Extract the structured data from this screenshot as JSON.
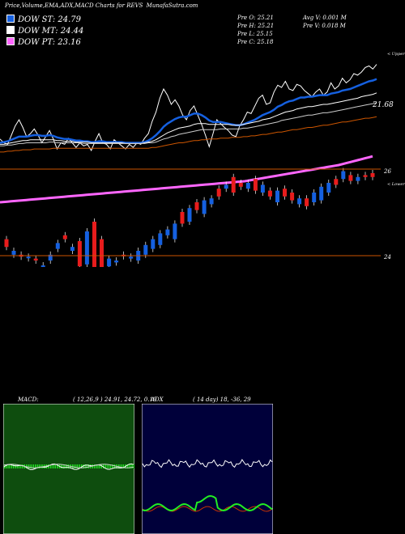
{
  "header": {
    "title": "Price,Volume,EMA,ADX,MACD Charts for REVS",
    "source": "MunafaSutra.com"
  },
  "legend": [
    {
      "label": "DOW ST: 24.79",
      "color": "#1560e0"
    },
    {
      "label": "DOW MT: 24.44",
      "color": "#ffffff"
    },
    {
      "label": "DOW PT: 23.16",
      "color": "#ff66ff"
    }
  ],
  "stats": {
    "prev_open": "Pre   O: 25.21",
    "prev_high": "Pre   H: 25.21",
    "prev_low": "Pre   L: 25.15",
    "prev_close": "Pre   C: 25.18",
    "avg_volume": "Avg V: 0.001 M",
    "prev_volume": "Pre   V: 0.018 M"
  },
  "upper": {
    "label_right": "< Upper",
    "level_label": "21.68",
    "bottom_label": "26"
  },
  "lower": {
    "label_right": "< Lower",
    "level_label": "24"
  },
  "chart_data": [
    {
      "type": "line",
      "name": "price-ema-upper",
      "x": [
        1,
        2,
        3,
        4,
        5,
        6,
        7,
        8,
        9,
        10,
        11,
        12,
        13,
        14,
        15,
        16,
        17,
        18,
        19,
        20,
        21,
        22,
        23,
        24,
        25,
        26,
        27,
        28,
        29,
        30,
        31,
        32,
        33,
        34,
        35,
        36,
        37,
        38,
        39,
        40,
        41,
        42,
        43,
        44,
        45,
        46,
        47,
        48,
        49,
        50,
        51,
        52,
        53,
        54,
        55,
        56,
        57,
        58,
        59,
        60,
        61,
        62,
        63,
        64,
        65,
        66,
        67,
        68,
        69,
        70,
        71,
        72,
        73,
        74,
        75,
        76,
        77,
        78,
        79,
        80,
        81,
        82,
        83,
        84,
        85,
        86,
        87,
        88,
        89,
        90,
        91,
        92,
        93,
        94,
        95,
        96,
        97,
        98,
        99,
        100
      ],
      "series": [
        {
          "color": "#ffffff",
          "values": [
            0.35,
            0.3,
            0.28,
            0.4,
            0.52,
            0.6,
            0.5,
            0.38,
            0.42,
            0.48,
            0.4,
            0.3,
            0.38,
            0.46,
            0.35,
            0.22,
            0.3,
            0.28,
            0.36,
            0.3,
            0.24,
            0.3,
            0.26,
            0.28,
            0.2,
            0.32,
            0.42,
            0.3,
            0.28,
            0.22,
            0.34,
            0.3,
            0.26,
            0.22,
            0.28,
            0.24,
            0.3,
            0.28,
            0.36,
            0.42,
            0.58,
            0.7,
            0.88,
            1.0,
            0.92,
            0.8,
            0.86,
            0.78,
            0.66,
            0.6,
            0.72,
            0.78,
            0.66,
            0.54,
            0.4,
            0.25,
            0.42,
            0.6,
            0.55,
            0.5,
            0.46,
            0.4,
            0.38,
            0.52,
            0.6,
            0.7,
            0.68,
            0.78,
            0.88,
            0.92,
            0.8,
            0.82,
            0.96,
            1.05,
            1.02,
            1.1,
            1.0,
            0.98,
            1.06,
            1.04,
            0.98,
            0.94,
            0.9,
            0.96,
            1.0,
            0.92,
            0.96,
            1.08,
            1.0,
            1.04,
            1.14,
            1.08,
            1.12,
            1.2,
            1.18,
            1.22,
            1.28,
            1.3,
            1.26,
            1.32
          ]
        },
        {
          "color": "#1560e0",
          "values": [
            0.3,
            0.31,
            0.32,
            0.34,
            0.36,
            0.38,
            0.38,
            0.38,
            0.39,
            0.4,
            0.4,
            0.39,
            0.39,
            0.4,
            0.39,
            0.37,
            0.36,
            0.35,
            0.35,
            0.34,
            0.33,
            0.33,
            0.32,
            0.32,
            0.31,
            0.31,
            0.32,
            0.32,
            0.31,
            0.31,
            0.31,
            0.31,
            0.31,
            0.3,
            0.3,
            0.3,
            0.3,
            0.3,
            0.31,
            0.33,
            0.36,
            0.4,
            0.45,
            0.51,
            0.55,
            0.58,
            0.61,
            0.63,
            0.64,
            0.64,
            0.66,
            0.68,
            0.68,
            0.66,
            0.63,
            0.59,
            0.57,
            0.57,
            0.57,
            0.56,
            0.55,
            0.54,
            0.53,
            0.53,
            0.54,
            0.56,
            0.58,
            0.6,
            0.63,
            0.66,
            0.68,
            0.7,
            0.73,
            0.77,
            0.79,
            0.82,
            0.84,
            0.85,
            0.87,
            0.89,
            0.89,
            0.9,
            0.9,
            0.91,
            0.92,
            0.92,
            0.92,
            0.94,
            0.95,
            0.96,
            0.98,
            0.99,
            1.0,
            1.02,
            1.04,
            1.06,
            1.08,
            1.1,
            1.11,
            1.13
          ]
        },
        {
          "color": "#ffffff",
          "values": [
            0.28,
            0.28,
            0.29,
            0.3,
            0.31,
            0.32,
            0.33,
            0.33,
            0.34,
            0.34,
            0.34,
            0.34,
            0.34,
            0.34,
            0.34,
            0.33,
            0.33,
            0.32,
            0.32,
            0.32,
            0.31,
            0.31,
            0.31,
            0.31,
            0.3,
            0.3,
            0.3,
            0.3,
            0.3,
            0.3,
            0.3,
            0.3,
            0.3,
            0.29,
            0.29,
            0.29,
            0.29,
            0.29,
            0.3,
            0.31,
            0.32,
            0.34,
            0.37,
            0.4,
            0.43,
            0.45,
            0.47,
            0.49,
            0.5,
            0.51,
            0.52,
            0.54,
            0.55,
            0.55,
            0.55,
            0.54,
            0.54,
            0.54,
            0.54,
            0.54,
            0.54,
            0.53,
            0.53,
            0.53,
            0.54,
            0.55,
            0.56,
            0.57,
            0.58,
            0.6,
            0.61,
            0.62,
            0.64,
            0.66,
            0.68,
            0.7,
            0.71,
            0.72,
            0.74,
            0.75,
            0.76,
            0.77,
            0.77,
            0.78,
            0.79,
            0.8,
            0.8,
            0.81,
            0.82,
            0.83,
            0.84,
            0.85,
            0.86,
            0.87,
            0.88,
            0.9,
            0.91,
            0.92,
            0.93,
            0.95
          ]
        },
        {
          "color": "#cccccc",
          "values": [
            0.26,
            0.26,
            0.27,
            0.27,
            0.28,
            0.29,
            0.29,
            0.3,
            0.3,
            0.3,
            0.3,
            0.3,
            0.3,
            0.31,
            0.31,
            0.3,
            0.3,
            0.3,
            0.3,
            0.3,
            0.3,
            0.3,
            0.29,
            0.29,
            0.29,
            0.29,
            0.29,
            0.29,
            0.29,
            0.29,
            0.29,
            0.29,
            0.29,
            0.29,
            0.29,
            0.29,
            0.29,
            0.29,
            0.29,
            0.3,
            0.3,
            0.31,
            0.33,
            0.35,
            0.36,
            0.38,
            0.39,
            0.41,
            0.42,
            0.43,
            0.44,
            0.45,
            0.46,
            0.47,
            0.47,
            0.47,
            0.47,
            0.47,
            0.48,
            0.48,
            0.48,
            0.48,
            0.48,
            0.48,
            0.49,
            0.49,
            0.5,
            0.51,
            0.52,
            0.53,
            0.54,
            0.55,
            0.56,
            0.57,
            0.59,
            0.6,
            0.61,
            0.62,
            0.63,
            0.64,
            0.65,
            0.66,
            0.66,
            0.67,
            0.68,
            0.69,
            0.69,
            0.7,
            0.71,
            0.72,
            0.73,
            0.74,
            0.75,
            0.76,
            0.77,
            0.78,
            0.79,
            0.8,
            0.81,
            0.82
          ]
        },
        {
          "color": "#cc5500",
          "values": [
            0.18,
            0.18,
            0.19,
            0.19,
            0.2,
            0.2,
            0.21,
            0.21,
            0.21,
            0.22,
            0.22,
            0.22,
            0.22,
            0.22,
            0.23,
            0.23,
            0.23,
            0.23,
            0.23,
            0.23,
            0.23,
            0.23,
            0.23,
            0.23,
            0.23,
            0.23,
            0.23,
            0.23,
            0.23,
            0.23,
            0.23,
            0.23,
            0.23,
            0.23,
            0.23,
            0.23,
            0.23,
            0.23,
            0.23,
            0.23,
            0.24,
            0.24,
            0.25,
            0.26,
            0.27,
            0.28,
            0.29,
            0.3,
            0.3,
            0.31,
            0.32,
            0.33,
            0.33,
            0.34,
            0.34,
            0.35,
            0.35,
            0.35,
            0.36,
            0.36,
            0.36,
            0.37,
            0.37,
            0.37,
            0.38,
            0.38,
            0.39,
            0.39,
            0.4,
            0.41,
            0.41,
            0.42,
            0.43,
            0.44,
            0.44,
            0.45,
            0.46,
            0.47,
            0.47,
            0.48,
            0.49,
            0.5,
            0.5,
            0.51,
            0.52,
            0.53,
            0.53,
            0.54,
            0.55,
            0.56,
            0.57,
            0.57,
            0.58,
            0.59,
            0.6,
            0.61,
            0.62,
            0.62,
            0.63,
            0.64
          ]
        }
      ]
    },
    {
      "type": "line",
      "name": "dow-pt-band",
      "color": "#ff66ff",
      "values": [
        0.05,
        0.06,
        0.07,
        0.08,
        0.09,
        0.1,
        0.11,
        0.12,
        0.13,
        0.14,
        0.15,
        0.16,
        0.17,
        0.18,
        0.19,
        0.2,
        0.21,
        0.22,
        0.23,
        0.24,
        0.25,
        0.26,
        0.27,
        0.28,
        0.29,
        0.3,
        0.31,
        0.32,
        0.33,
        0.34,
        0.35,
        0.36,
        0.37,
        0.38,
        0.39,
        0.4,
        0.41,
        0.42,
        0.43,
        0.44,
        0.45,
        0.46,
        0.47,
        0.48,
        0.49,
        0.5,
        0.51,
        0.52,
        0.53,
        0.54,
        0.55,
        0.56,
        0.57,
        0.58,
        0.59,
        0.6,
        0.61,
        0.62,
        0.63,
        0.64,
        0.65,
        0.66,
        0.67,
        0.68,
        0.69,
        0.7,
        0.72,
        0.74,
        0.76,
        0.78,
        0.8,
        0.82,
        0.84,
        0.86,
        0.88,
        0.9,
        0.92,
        0.94,
        0.96,
        0.98,
        1.0,
        1.02,
        1.04,
        1.06,
        1.08,
        1.1,
        1.12,
        1.14,
        1.16,
        1.18,
        1.2,
        1.23,
        1.26,
        1.29,
        1.32,
        1.35,
        1.38,
        1.41,
        1.44,
        1.47
      ]
    },
    {
      "type": "candlestick",
      "name": "price-candles",
      "open": [
        0.62,
        0.5,
        0.46,
        0.44,
        0.4,
        0.35,
        0.4,
        0.52,
        0.62,
        0.5,
        0.6,
        0.7,
        0.8,
        0.62,
        0.42,
        0.38,
        0.46,
        0.42,
        0.4,
        0.46,
        0.52,
        0.56,
        0.66,
        0.62,
        0.78,
        0.8,
        0.92,
        0.88,
        0.98,
        1.06,
        1.14,
        1.1,
        1.2,
        1.14,
        1.24,
        1.18,
        1.12,
        1.0,
        1.06,
        1.1,
        1.04,
        0.96,
        1.1,
        1.02,
        1.1,
        1.18,
        1.24,
        1.28,
        1.22,
        1.26,
        1.3
      ],
      "close": [
        0.54,
        0.46,
        0.44,
        0.44,
        0.42,
        0.3,
        0.46,
        0.58,
        0.66,
        0.54,
        0.34,
        0.36,
        0.18,
        0.28,
        0.34,
        0.4,
        0.46,
        0.44,
        0.5,
        0.56,
        0.62,
        0.68,
        0.72,
        0.78,
        0.9,
        0.94,
        1.0,
        1.02,
        1.04,
        1.14,
        1.18,
        1.26,
        1.16,
        1.2,
        1.12,
        1.1,
        1.06,
        1.12,
        1.14,
        1.02,
        0.98,
        1.04,
        1.0,
        1.16,
        1.2,
        1.24,
        1.32,
        1.22,
        1.26,
        1.28,
        1.26
      ],
      "colors": [
        "#e81c1c",
        "#1560e0",
        "#e81c1c",
        "#1560e0",
        "#e81c1c",
        "#1560e0",
        "#1560e0",
        "#1560e0",
        "#e81c1c",
        "#1560e0",
        "#e81c1c",
        "#1560e0",
        "#e81c1c",
        "#e81c1c",
        "#1560e0",
        "#1560e0",
        "#e81c1c",
        "#1560e0",
        "#1560e0",
        "#1560e0",
        "#1560e0",
        "#1560e0",
        "#1560e0",
        "#1560e0",
        "#e81c1c",
        "#1560e0",
        "#e81c1c",
        "#1560e0",
        "#1560e0",
        "#e81c1c",
        "#1560e0",
        "#e81c1c",
        "#e81c1c",
        "#1560e0",
        "#e81c1c",
        "#1560e0",
        "#e81c1c",
        "#1560e0",
        "#e81c1c",
        "#e81c1c",
        "#1560e0",
        "#e81c1c",
        "#1560e0",
        "#1560e0",
        "#1560e0",
        "#e81c1c",
        "#1560e0",
        "#e81c1c",
        "#1560e0",
        "#e81c1c",
        "#e81c1c"
      ]
    }
  ],
  "macd": {
    "label": "MACD:",
    "params": "( 12,26,9 ) 24.91, 24.72, 0.19",
    "bg": "#0e4d0e"
  },
  "adx": {
    "label": "ADX",
    "params": "( 14  day) 18, -36,  29",
    "bg": "#00003a"
  }
}
